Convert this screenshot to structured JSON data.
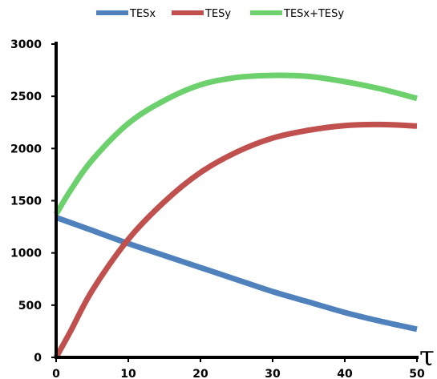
{
  "chart_data": {
    "type": "line",
    "x_symbol": "τ",
    "xlim": [
      0,
      50
    ],
    "ylim": [
      0,
      3000
    ],
    "x_ticks": [
      0,
      10,
      20,
      30,
      40,
      50
    ],
    "y_ticks": [
      0,
      500,
      1000,
      1500,
      2000,
      2500,
      3000
    ],
    "legend_position": "top",
    "grid": false,
    "series": [
      {
        "name": "TESx",
        "color": "#4f81bd",
        "x": [
          0,
          5,
          10,
          15,
          20,
          25,
          30,
          35,
          40,
          45,
          50
        ],
        "y": [
          1340,
          1215,
          1090,
          975,
          860,
          745,
          630,
          530,
          430,
          345,
          270
        ]
      },
      {
        "name": "TESy",
        "color": "#c0504d",
        "x": [
          0,
          2,
          5,
          10,
          15,
          20,
          25,
          30,
          35,
          40,
          45,
          50
        ],
        "y": [
          0,
          250,
          640,
          1130,
          1490,
          1770,
          1965,
          2100,
          2175,
          2220,
          2230,
          2215
        ]
      },
      {
        "name": "TESx+TESy",
        "color": "#6cd16c",
        "x": [
          0,
          2,
          5,
          10,
          15,
          20,
          25,
          30,
          35,
          40,
          45,
          50
        ],
        "y": [
          1370,
          1600,
          1890,
          2240,
          2460,
          2610,
          2680,
          2700,
          2690,
          2640,
          2570,
          2480
        ]
      }
    ]
  }
}
